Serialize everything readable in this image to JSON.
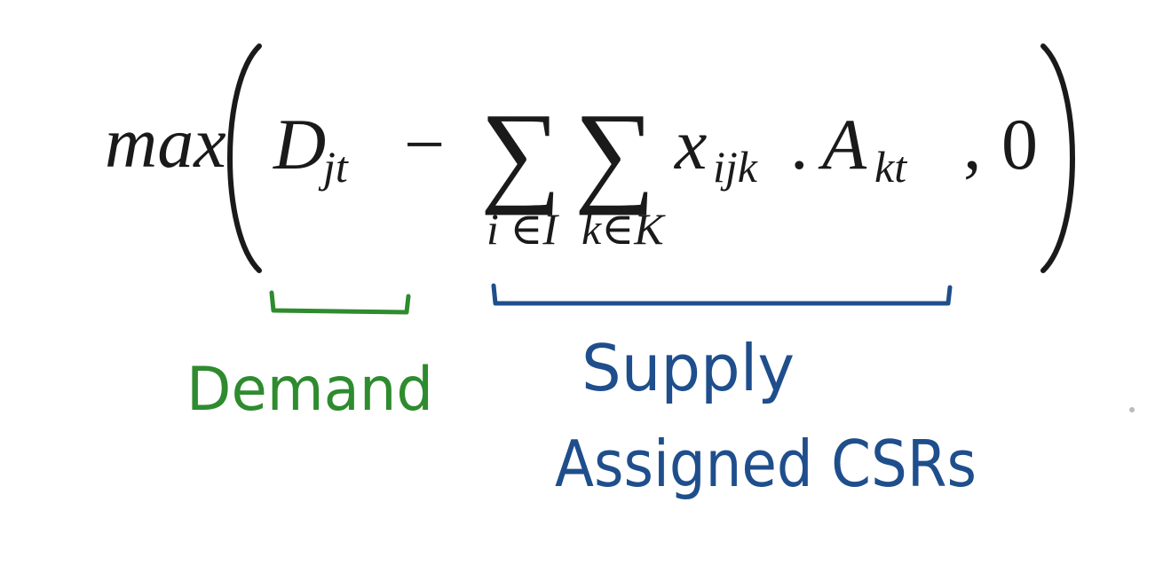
{
  "formula": {
    "max": "max",
    "demand_symbol": "D",
    "demand_subscript": "jt",
    "minus": "−",
    "sum_symbol": "∑",
    "sum1_index": "i ∈I",
    "sum2_index": "k∈K",
    "x_symbol": "x",
    "x_subscript": "ijk",
    "dot": ".",
    "a_symbol": "A",
    "a_subscript": "kt",
    "comma": ",",
    "zero": "0"
  },
  "annotations": {
    "demand_label": "Demand",
    "supply_label_line1": "Supply",
    "supply_label_line2": "Assigned CSRs"
  },
  "colors": {
    "formula": "#1a1a1a",
    "demand": "#2e8b2e",
    "supply": "#1f4e8c"
  }
}
